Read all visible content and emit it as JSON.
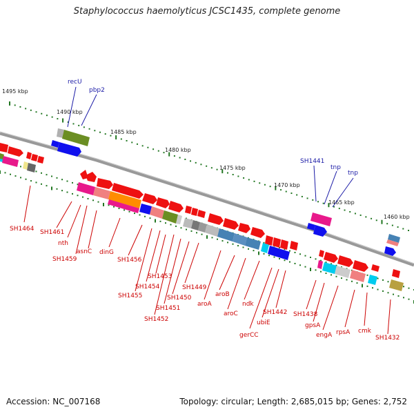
{
  "title": "Staphylococcus haemolyticus JCSC1435, complete genome",
  "footer": {
    "accession": "Accession: NC_007168",
    "topology": "Topology: circular; Length: 2,685,015 bp; Genes: 2,752"
  },
  "ticks": [
    "1495 kbp",
    "1490 kbp",
    "1485 kbp",
    "1480 kbp",
    "1475 kbp",
    "1470 kbp",
    "1465 kbp",
    "1460 kbp"
  ],
  "top_strand_labels": [
    "recU",
    "pbp2",
    "SH1441",
    "tnp",
    "tnp"
  ],
  "bottom_strand_labels": [
    "SH1464",
    "SH1461",
    "nth",
    "SH1459",
    "asnC",
    "dinG",
    "SH1456",
    "SH1455",
    "SH1454",
    "SH1453",
    "SH1452",
    "SH1451",
    "SH1450",
    "SH1449",
    "aroA",
    "aroB",
    "aroC",
    "ndk",
    "gerCC",
    "ubiE",
    "SH1442",
    "SH1438",
    "gpsA",
    "engA",
    "rpsA",
    "cmk",
    "SH1432"
  ],
  "colors": {
    "gene_arrow": "#ee1111",
    "top_label": "#1a1aa6",
    "bottom_label": "#cc0000",
    "backbone": "#888888",
    "tick": "#227722",
    "cog_green": "#6b8e23",
    "cog_blue": "#1010ee",
    "cog_pink": "#e8198b",
    "cog_salmon": "#f08080",
    "cog_orange": "#ff8c00",
    "cog_steel": "#4682b4",
    "cog_cyan": "#00ccee",
    "cog_gray": "#aaaaaa",
    "cog_olive": "#b8a040"
  }
}
